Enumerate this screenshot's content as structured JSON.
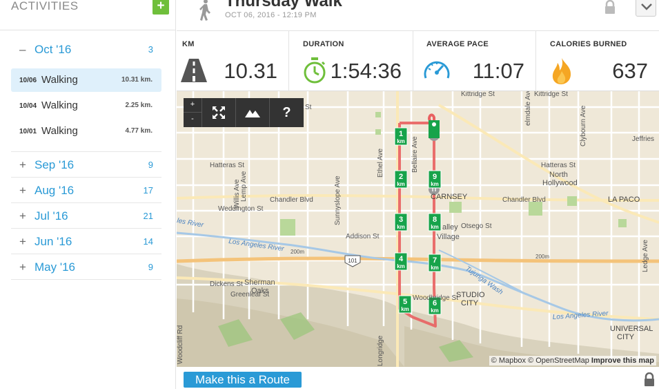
{
  "sidebar": {
    "title": "ACTIVITIES",
    "add_label": "+",
    "months": [
      {
        "sign": "–",
        "label": "Oct '16",
        "count": "3",
        "open": true
      },
      {
        "sign": "+",
        "label": "Sep '16",
        "count": "9"
      },
      {
        "sign": "+",
        "label": "Aug '16",
        "count": "17"
      },
      {
        "sign": "+",
        "label": "Jul '16",
        "count": "21"
      },
      {
        "sign": "+",
        "label": "Jun '16",
        "count": "14"
      },
      {
        "sign": "+",
        "label": "May '16",
        "count": "9"
      }
    ],
    "activities": [
      {
        "date": "10/06",
        "type": "Walking",
        "distance": "10.31 km."
      },
      {
        "date": "10/04",
        "type": "Walking",
        "distance": "2.25 km."
      },
      {
        "date": "10/01",
        "type": "Walking",
        "distance": "4.77 km."
      }
    ]
  },
  "workout": {
    "title": "Thursday Walk",
    "datetime": "OCT 06, 2016  -  12:19 PM",
    "activity_icon": "walker-icon"
  },
  "stats": [
    {
      "label": "KM",
      "value": "10.31",
      "icon": "road-icon"
    },
    {
      "label": "DURATION",
      "value": "1:54:36",
      "icon": "stopwatch-icon"
    },
    {
      "label": "AVERAGE PACE",
      "value": "11:07",
      "icon": "speedometer-icon"
    },
    {
      "label": "CALORIES BURNED",
      "value": "637",
      "icon": "flame-icon"
    }
  ],
  "map": {
    "zoom_in": "+",
    "zoom_out": "-",
    "help_label": "?",
    "km_unit": "km",
    "markers": [
      "1",
      "2",
      "3",
      "4",
      "5",
      "6",
      "7",
      "8",
      "9"
    ],
    "labels": {
      "kittridge1": "Kittridge St",
      "kittridge2": "Kittridge St",
      "st_top": "St",
      "hatteras1": "Hatteras St",
      "hatteras2": "Hatteras St",
      "chandler1": "Chandler Blvd",
      "chandler2": "Chandler Blvd",
      "weddington": "Weddington St",
      "addison": "Addison St",
      "otsego": "Otsego St",
      "dickens": "Dickens St",
      "greenleaf": "Greenleaf St",
      "woodbridge": "Woodbridge St",
      "sunnyslope": "Sunnyslope Ave",
      "willis": "Willis Ave",
      "ethel": "Ethel Ave",
      "bellaire": "Bellaire Ave",
      "lemp": "Lemp Ave",
      "elmdale": "elmdale Ave",
      "clybourn": "Clybourn Ave",
      "ledge": "Ledge Ave",
      "jeffries": "Jeffries",
      "carnsey": "CARNSEY",
      "valley": "alley",
      "village": "Village",
      "north": "North",
      "hollywood": "Hollywood",
      "lapaco": "LA PACO",
      "sherman": "Sherman",
      "oaks": "Oaks",
      "studio": "STUDIO",
      "city": "CITY",
      "universal": "UNIVERSAL",
      "city2": "CITY",
      "la_river1": "Los Angeles River",
      "la_river2": "Los Angeles River",
      "river_left": "les River",
      "tujunga": "Tujunga Wash",
      "hwy": "101",
      "e200m1": "200m",
      "e200m2": "200m",
      "woodcliff": "Woodcliff Rd",
      "longridge": "Longridge"
    },
    "attribution": {
      "mapbox": "© Mapbox",
      "osm": "© OpenStreetMap",
      "improve": "Improve this map"
    }
  },
  "footer": {
    "route_button": "Make this a Route"
  },
  "colors": {
    "accent": "#2a9ad6",
    "green": "#6fbf3b",
    "route": "#e86060",
    "marker": "#17a34a"
  }
}
